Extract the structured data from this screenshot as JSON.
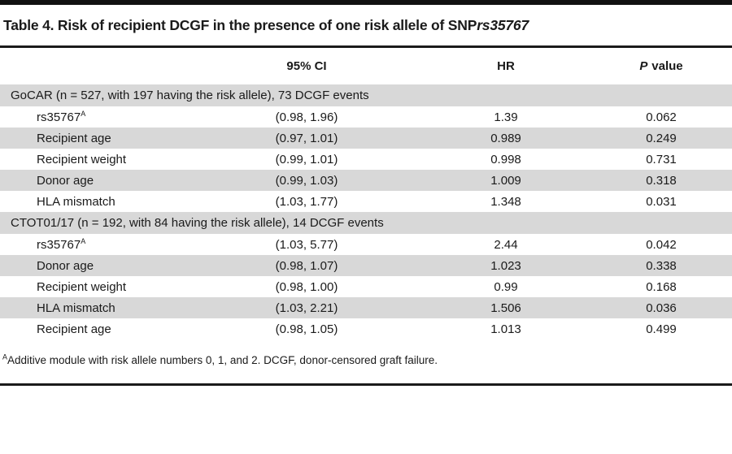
{
  "title": {
    "prefix": "Table 4. Risk of recipient DCGF in the presence of one risk allele of SNP ",
    "snp_italic": "rs35767"
  },
  "columns": {
    "label": "",
    "ci": "95% CI",
    "hr": "HR",
    "p_italic": "P",
    "p_rest": " value"
  },
  "sections": [
    {
      "header": "GoCAR (n = 527, with 197 having the risk allele), 73 DCGF events",
      "rows": [
        {
          "label": "rs35767",
          "superscript": "A",
          "ci": "(0.98, 1.96)",
          "hr": "1.39",
          "p": "0.062"
        },
        {
          "label": "Recipient age",
          "superscript": "",
          "ci": "(0.97, 1.01)",
          "hr": "0.989",
          "p": "0.249"
        },
        {
          "label": "Recipient weight",
          "superscript": "",
          "ci": "(0.99, 1.01)",
          "hr": "0.998",
          "p": "0.731"
        },
        {
          "label": "Donor age",
          "superscript": "",
          "ci": "(0.99, 1.03)",
          "hr": "1.009",
          "p": "0.318"
        },
        {
          "label": "HLA mismatch",
          "superscript": "",
          "ci": "(1.03, 1.77)",
          "hr": "1.348",
          "p": "0.031"
        }
      ]
    },
    {
      "header": "CTOT01/17 (n = 192, with 84 having the risk allele), 14 DCGF events",
      "rows": [
        {
          "label": "rs35767",
          "superscript": "A",
          "ci": "(1.03, 5.77)",
          "hr": "2.44",
          "p": "0.042"
        },
        {
          "label": "Donor age",
          "superscript": "",
          "ci": "(0.98, 1.07)",
          "hr": "1.023",
          "p": "0.338"
        },
        {
          "label": "Recipient weight",
          "superscript": "",
          "ci": "(0.98, 1.00)",
          "hr": "0.99",
          "p": "0.168"
        },
        {
          "label": "HLA mismatch",
          "superscript": "",
          "ci": "(1.03, 2.21)",
          "hr": "1.506",
          "p": "0.036"
        },
        {
          "label": "Recipient age",
          "superscript": "",
          "ci": "(0.98, 1.05)",
          "hr": "1.013",
          "p": "0.499"
        }
      ]
    }
  ],
  "footnote": {
    "superscript": "A",
    "text": "Additive module with risk allele numbers 0, 1, and 2. DCGF, donor-censored graft failure."
  },
  "colors": {
    "stripe": "#d8d8d8",
    "rule": "#1a1a1a",
    "text": "#1a1a1a"
  }
}
